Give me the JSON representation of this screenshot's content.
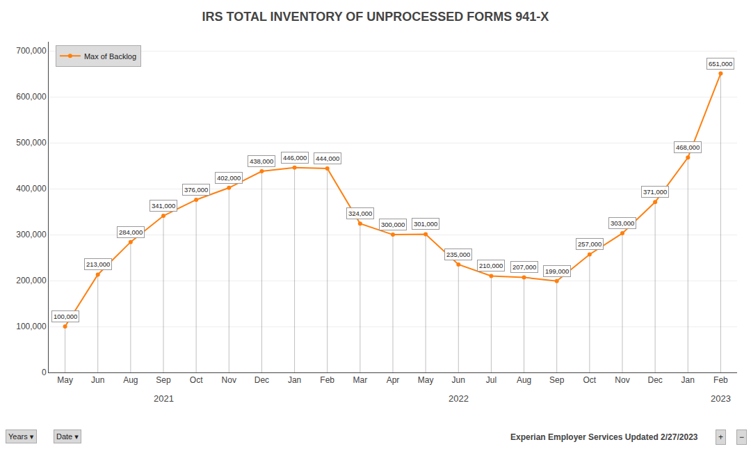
{
  "chart_data": {
    "type": "line",
    "title": "IRS TOTAL INVENTORY OF UNPROCESSED FORMS 941-X",
    "categories": [
      "May",
      "Jun",
      "Aug",
      "Sep",
      "Oct",
      "Nov",
      "Dec",
      "Jan",
      "Feb",
      "Mar",
      "Apr",
      "May",
      "Jun",
      "Jul",
      "Aug",
      "Sep",
      "Oct",
      "Nov",
      "Dec",
      "Jan",
      "Feb"
    ],
    "series": [
      {
        "name": "Max of Backlog",
        "values": [
          100000,
          213000,
          284000,
          341000,
          376000,
          402000,
          438000,
          446000,
          444000,
          324000,
          300000,
          301000,
          235000,
          210000,
          207000,
          199000,
          257000,
          303000,
          371000,
          468000,
          651000
        ],
        "value_labels": [
          "100,000",
          "213,000",
          "284,000",
          "341,000",
          "376,000",
          "402,000",
          "438,000",
          "446,000",
          "444,000",
          "324,000",
          "300,000",
          "301,000",
          "235,000",
          "210,000",
          "207,000",
          "199,000",
          "257,000",
          "303,000",
          "371,000",
          "468,000",
          "651,000"
        ]
      }
    ],
    "marker": "circle",
    "ylim": [
      0,
      720000
    ],
    "yticks": [
      0,
      {
        "value": 100000,
        "label": "100,000"
      },
      {
        "value": 200000,
        "label": "200,000"
      },
      {
        "value": 300000,
        "label": "300,000"
      },
      {
        "value": 400000,
        "label": "400,000"
      },
      {
        "value": 500000,
        "label": "500,000"
      },
      {
        "value": 600000,
        "label": "600,000"
      },
      {
        "value": 700000,
        "label": "700,000"
      }
    ],
    "grid": true,
    "data_labels": true,
    "legend": "upper left",
    "annotations": [
      {
        "text": "2021",
        "x": 3
      },
      {
        "text": "2022",
        "x": 12
      },
      {
        "text": "2023",
        "x": 20
      },
      {
        "text": "Years ▾"
      },
      {
        "text": "Date ▾"
      },
      {
        "text": "Experian Employer Services Updated 2/27/2023"
      },
      {
        "text": "+"
      },
      {
        "text": "−"
      }
    ]
  }
}
